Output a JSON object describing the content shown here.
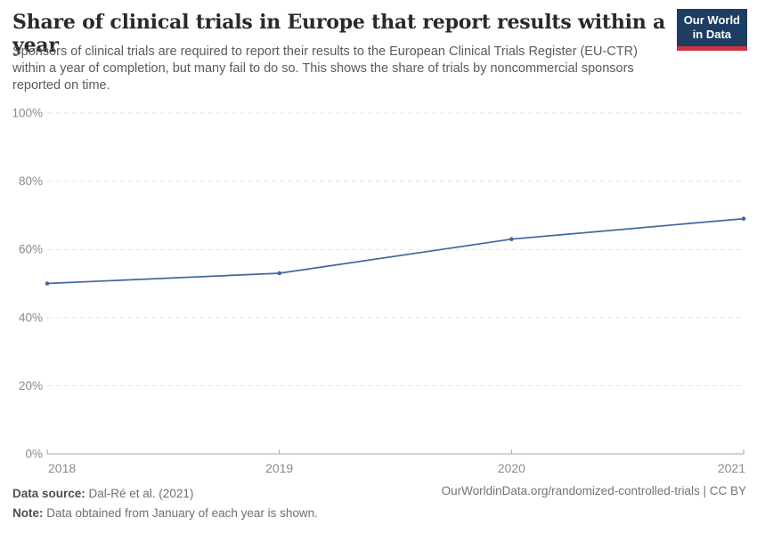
{
  "header": {
    "title": "Share of clinical trials in Europe that report results within a year",
    "subtitle": "Sponsors of clinical trials are required to report their results to the European Clinical Trials Register (EU-CTR) within a year of completion, but many fail to do so. This shows the share of trials by noncommercial sponsors reported on time.",
    "logo": {
      "line1": "Our World",
      "line2": "in Data",
      "bg_color": "#1d3d63",
      "accent_color": "#cf303e"
    }
  },
  "chart_data": {
    "type": "line",
    "title": "Share of clinical trials in Europe that report results within a year",
    "x": [
      2018,
      2019,
      2020,
      2021
    ],
    "series": [
      {
        "name": "Share of trials by noncommercial sponsors reported on time",
        "values": [
          50,
          53,
          63,
          69
        ],
        "color": "#4266a0"
      }
    ],
    "xlabel": "",
    "ylabel": "",
    "ylim": [
      0,
      100
    ],
    "yticks": [
      0,
      20,
      40,
      60,
      80,
      100
    ],
    "ytick_suffix": "%",
    "grid": "horizontal-dashed",
    "legend": "none",
    "colors": {
      "line": "#4266a0",
      "gridline": "#e2e2e2",
      "axis": "#a6a6a6",
      "tick_label": "#8a8a8a"
    }
  },
  "footer": {
    "source_label": "Data source:",
    "source_text": " Dal-Ré et al. (2021)",
    "note_label": "Note:",
    "note_text": " Data obtained from January of each year is shown.",
    "rights": "OurWorldinData.org/randomized-controlled-trials | CC BY"
  }
}
